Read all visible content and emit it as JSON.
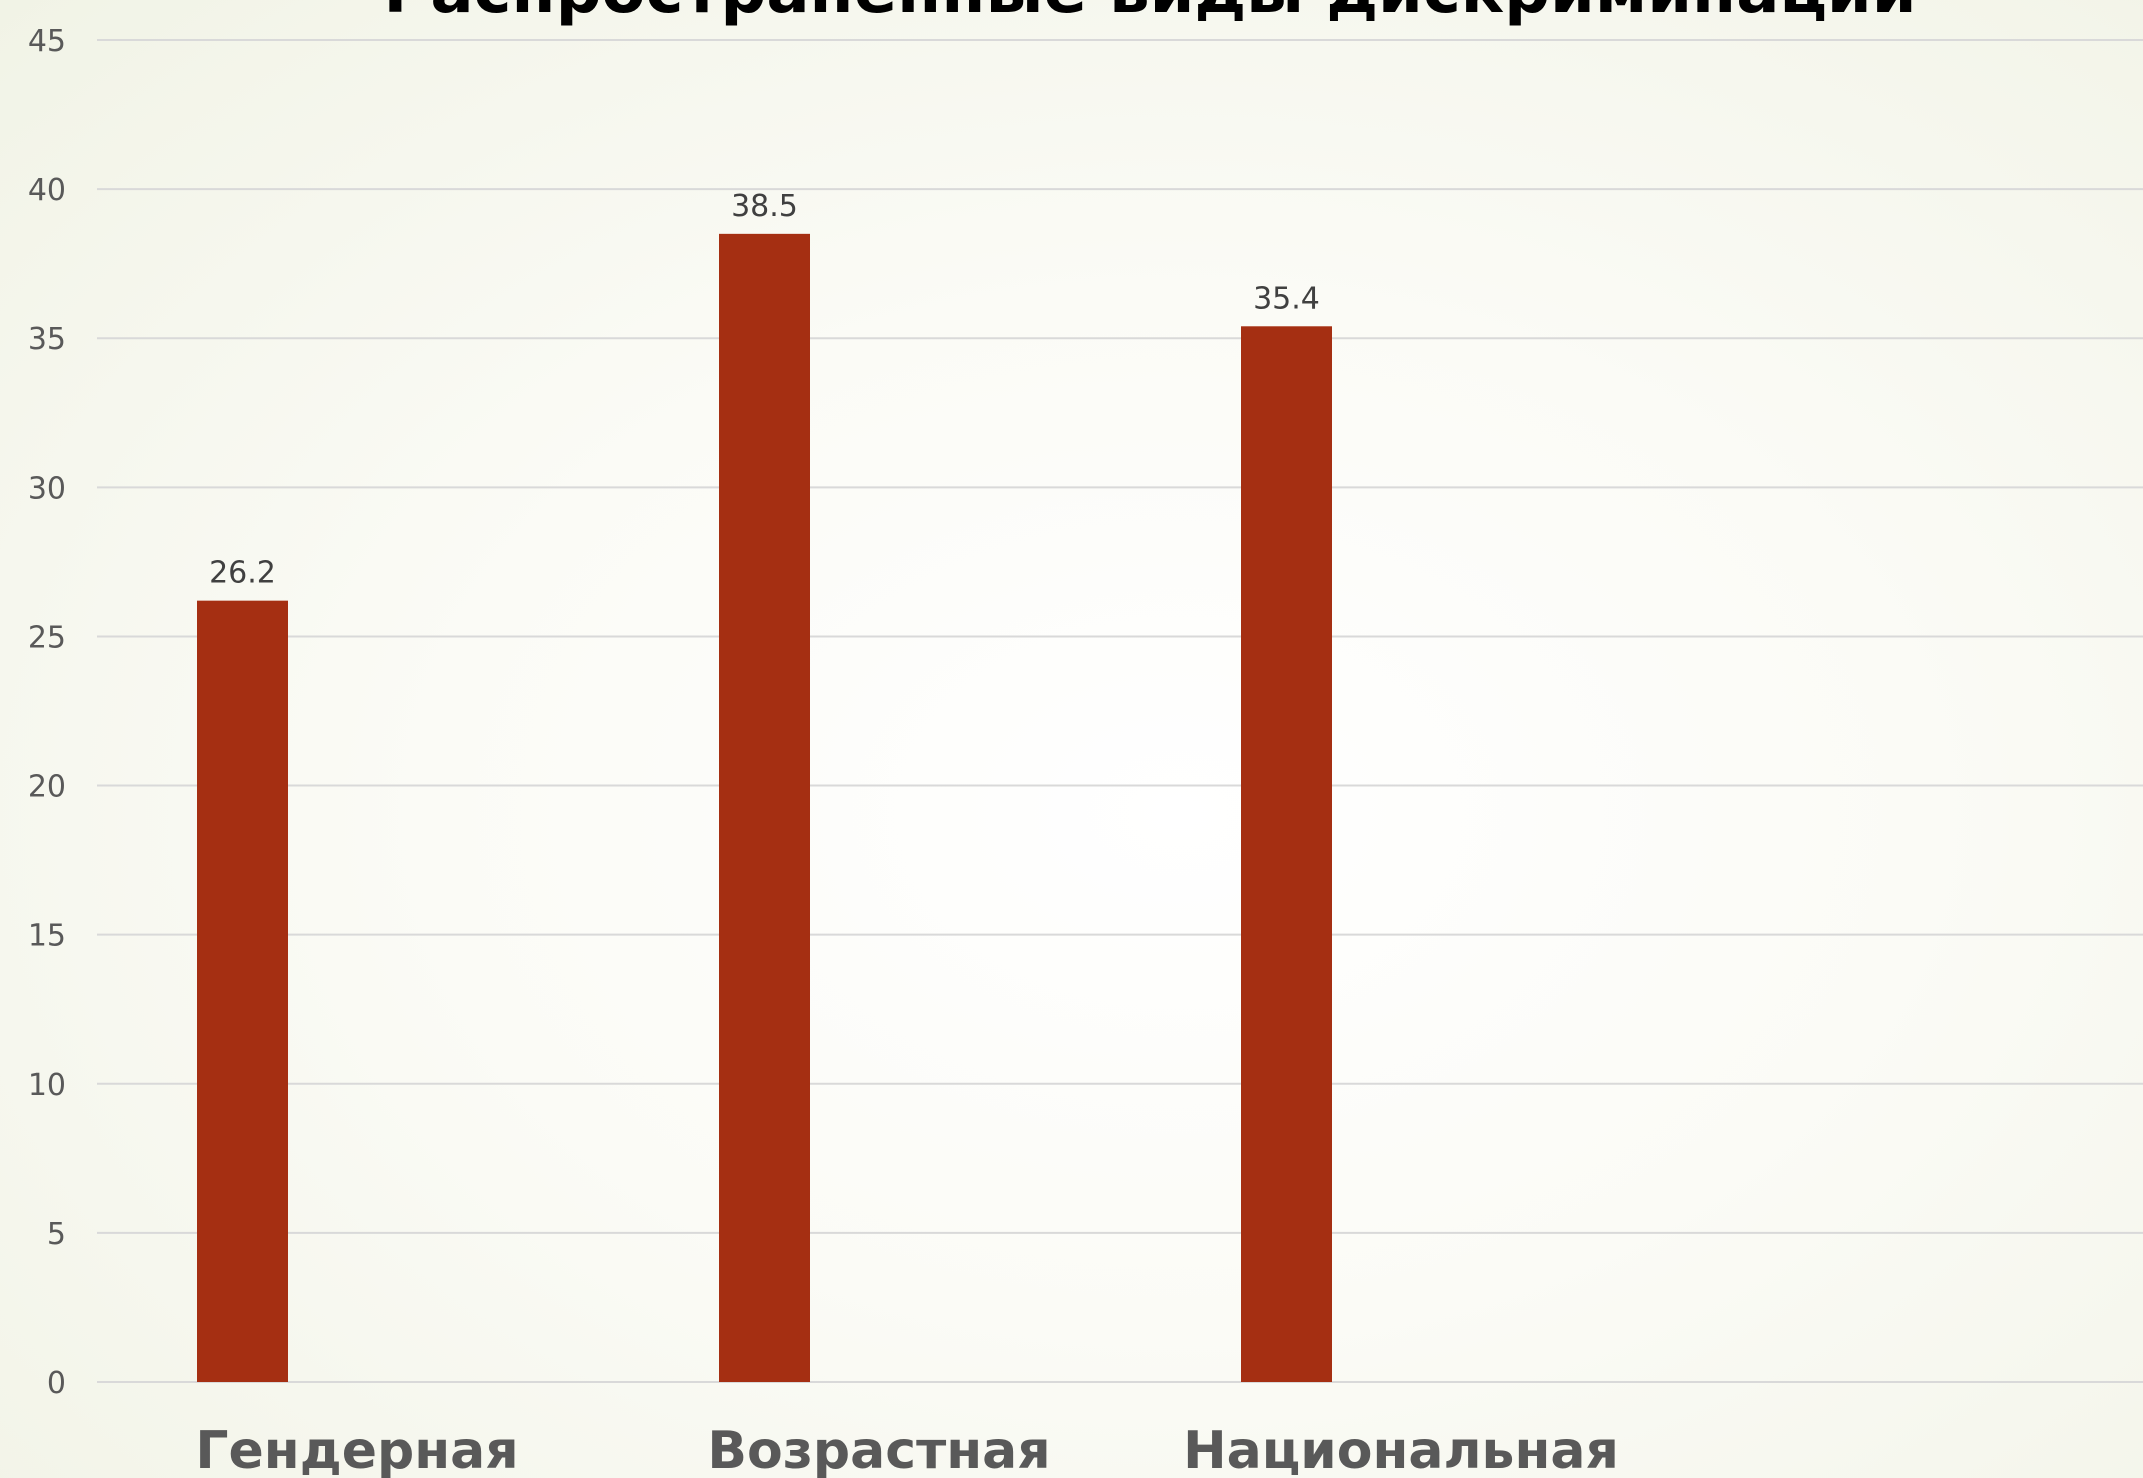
{
  "chart_data": {
    "type": "bar",
    "title": "Распространенные виды дискриминации",
    "categories": [
      "Гендерная",
      "Возрастная",
      "Национальная"
    ],
    "series": [
      {
        "values": [
          26.2,
          38.5,
          35.4
        ],
        "color": "#a52f12"
      }
    ],
    "data_labels": [
      "26.2",
      "38.5",
      "35.4"
    ],
    "ylim": [
      0,
      45
    ],
    "yticks": [
      0,
      5,
      10,
      15,
      20,
      25,
      30,
      35,
      40,
      45
    ],
    "grid": true,
    "legend": "none",
    "xlabel": "",
    "ylabel": ""
  }
}
